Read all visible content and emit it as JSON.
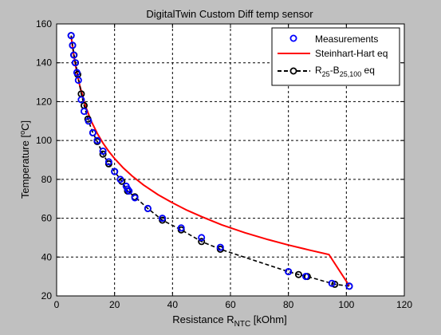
{
  "chart_data": {
    "type": "line",
    "title": "DigitalTwin Custom Diff temp sensor",
    "xlabel": {
      "main": "Resistance R",
      "sub": "NTC",
      "tail": " [kOhm]"
    },
    "ylabel": {
      "pre": "Temperature [",
      "sup": "o",
      "post": "C]"
    },
    "xlim": [
      0,
      120
    ],
    "ylim": [
      20,
      160
    ],
    "xticks": [
      0,
      20,
      40,
      60,
      80,
      100,
      120
    ],
    "yticks": [
      20,
      40,
      60,
      80,
      100,
      120,
      140,
      160
    ],
    "grid": true,
    "legend_position": "top-right",
    "series": [
      {
        "name": "Measurements",
        "style": "circle-markers",
        "color": "#0000ff",
        "x": [
          5.0,
          5.5,
          5.9,
          6.4,
          7.0,
          7.5,
          8.5,
          9.5,
          11.0,
          12.5,
          14.0,
          16.0,
          18.0,
          20.0,
          22.0,
          24.0,
          24.5,
          25.0,
          27.0,
          31.5,
          36.5,
          43.0,
          50.0,
          56.5,
          80.0,
          86.0,
          95.0,
          101.0
        ],
        "y": [
          154,
          149,
          144,
          140,
          135,
          131,
          121,
          115,
          110,
          104,
          100,
          94.5,
          89,
          84,
          80,
          76.5,
          75,
          74,
          70.5,
          65,
          60,
          55,
          50,
          45,
          32.5,
          30,
          26.5,
          25
        ]
      },
      {
        "name": "Steinhart-Hart eq",
        "style": "line",
        "color": "#ff0000",
        "x": [
          5,
          6,
          7,
          8,
          10,
          12,
          14,
          16,
          18,
          20,
          23,
          26,
          30,
          35,
          40,
          45,
          50,
          57,
          65,
          73,
          80,
          87,
          94,
          101
        ],
        "y": [
          153.6,
          143.2,
          134.9,
          128.1,
          117.6,
          109.8,
          103.7,
          98.7,
          94.4,
          90.7,
          85.9,
          81.8,
          77.1,
          72.1,
          67.9,
          64.1,
          60.8,
          56.6,
          52.5,
          49.0,
          46.2,
          43.7,
          41.3,
          25.2
        ]
      },
      {
        "name": "R25-B25,100 eq",
        "legend": {
          "main": "R",
          "sub1": "25",
          "mid": "-B",
          "sub2": "25,100",
          "tail": " eq"
        },
        "style": "dashed-circle-markers",
        "color": "#000000",
        "x": [
          5.0,
          5.5,
          6.0,
          6.5,
          7.3,
          8.5,
          9.5,
          10.8,
          12.5,
          14.0,
          16.0,
          18.0,
          20.0,
          22.5,
          24.5,
          27.0,
          31.5,
          36.5,
          43.0,
          50.0,
          56.5,
          80.0,
          83.5,
          86.5,
          96.0,
          101.0
        ],
        "y": [
          154,
          149,
          144,
          140,
          134,
          124,
          118,
          111,
          104,
          99.5,
          93,
          88,
          84,
          79,
          74,
          71,
          65,
          59,
          54,
          48,
          44,
          32.5,
          31,
          30,
          26,
          25
        ]
      }
    ]
  }
}
